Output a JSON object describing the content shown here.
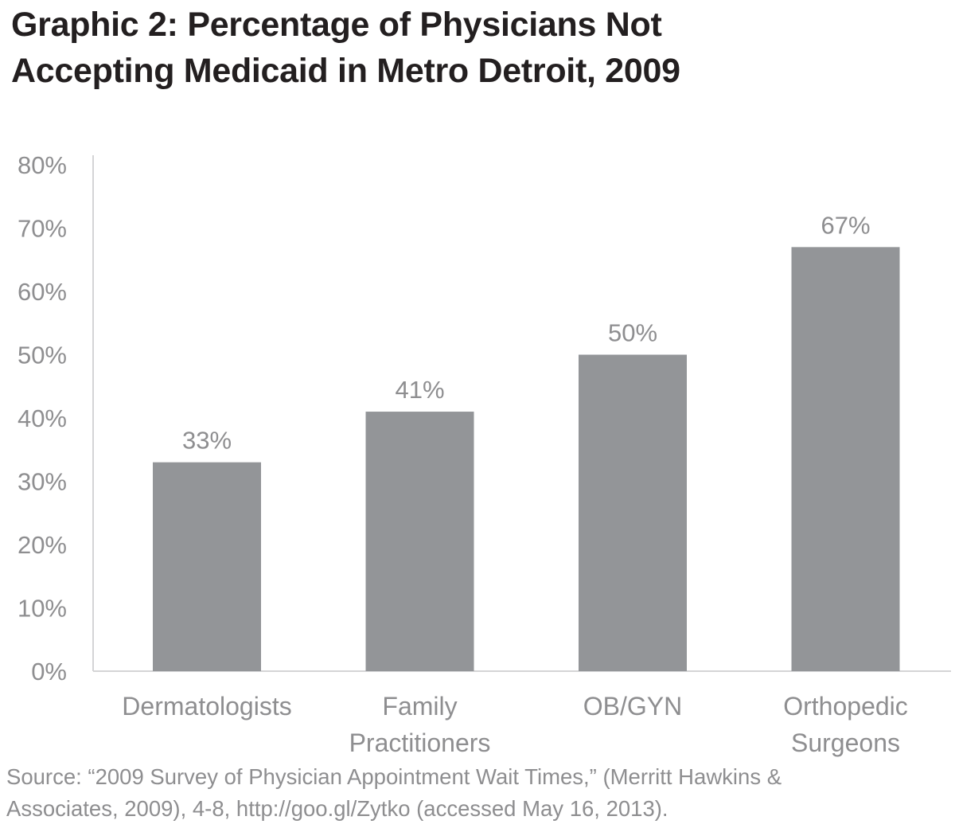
{
  "chart_data": {
    "type": "bar",
    "title": "Graphic 2: Percentage of Physicians Not Accepting Medicaid in Metro Detroit, 2009",
    "title_lines": [
      "Graphic 2: Percentage of Physicians Not",
      "Accepting Medicaid in Metro Detroit, 2009"
    ],
    "categories": [
      "Dermatologists",
      "Family Practitioners",
      "OB/GYN",
      "Orthopedic Surgeons"
    ],
    "category_lines": [
      [
        "Dermatologists"
      ],
      [
        "Family",
        "Practitioners"
      ],
      [
        "OB/GYN"
      ],
      [
        "Orthopedic",
        "Surgeons"
      ]
    ],
    "values": [
      33,
      41,
      50,
      67
    ],
    "data_labels": [
      "33%",
      "41%",
      "50%",
      "67%"
    ],
    "xlabel": "",
    "ylabel": "",
    "ylim": [
      0,
      80
    ],
    "yticks": [
      0,
      10,
      20,
      30,
      40,
      50,
      60,
      70,
      80
    ],
    "ytick_labels": [
      "0%",
      "10%",
      "20%",
      "30%",
      "40%",
      "50%",
      "60%",
      "70%",
      "80%"
    ],
    "grid": false,
    "legend": "none",
    "bar_color": "#939598",
    "text_color": "#8e8e90",
    "axis_color": "#d4d4d6"
  },
  "source": {
    "lines": [
      "Source: “2009 Survey of Physician Appointment Wait Times,” (Merritt Hawkins &",
      "Associates, 2009), 4-8, http://goo.gl/Zytko (accessed May 16, 2013)."
    ]
  }
}
